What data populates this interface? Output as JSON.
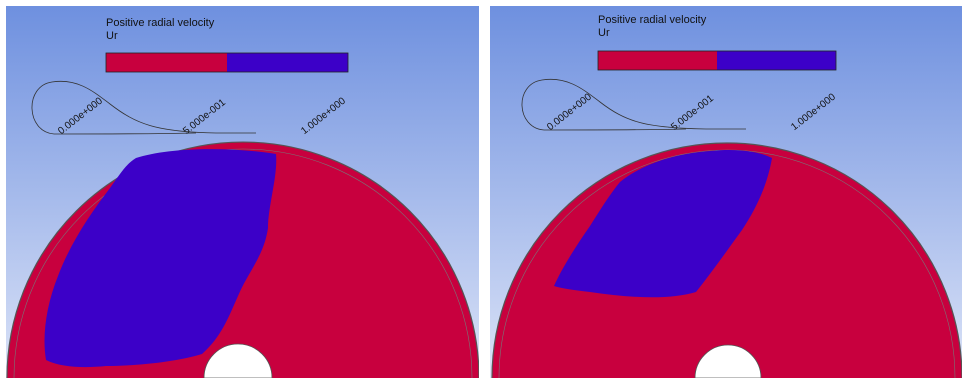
{
  "legend": {
    "title": "Positive radial velocity",
    "variable": "Ur",
    "ticks": [
      "0.000e+000",
      "5.000e-001",
      "1.000e+000"
    ]
  },
  "colors": {
    "background_top": "#6e90df",
    "background_bottom": "#dbe3f7",
    "negative": "#c8003e",
    "positive": "#3c00c8",
    "outline": "#222222"
  },
  "panels": [
    {
      "label": "left"
    },
    {
      "label": "right"
    }
  ]
}
